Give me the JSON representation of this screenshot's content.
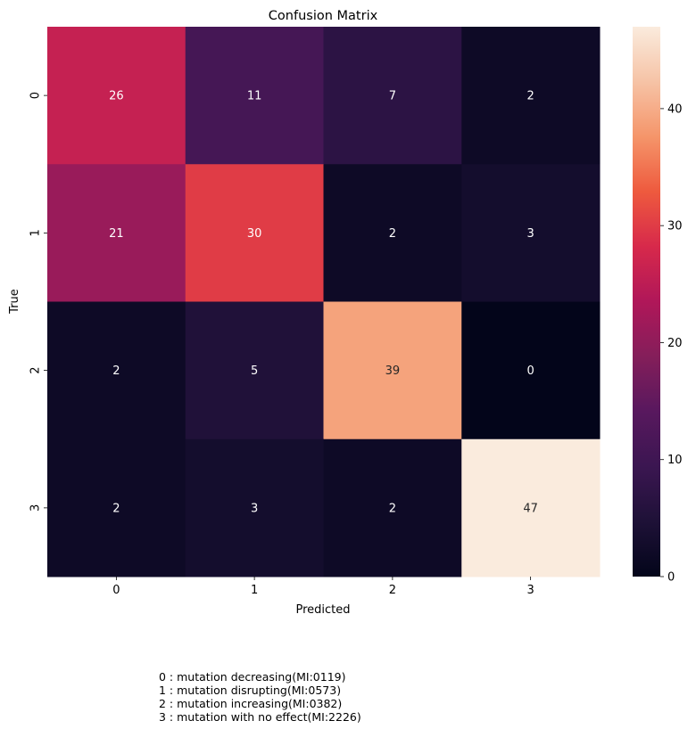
{
  "chart_data": {
    "type": "heatmap",
    "title": "Confusion Matrix",
    "xlabel": "Predicted",
    "ylabel": "True",
    "x_categories": [
      "0",
      "1",
      "2",
      "3"
    ],
    "y_categories": [
      "0",
      "1",
      "2",
      "3"
    ],
    "matrix": [
      [
        26,
        11,
        7,
        2
      ],
      [
        21,
        30,
        2,
        3
      ],
      [
        2,
        5,
        39,
        0
      ],
      [
        2,
        3,
        2,
        47
      ]
    ],
    "colormap": "rocket",
    "colorbar": {
      "range": [
        0,
        47
      ],
      "ticks": [
        "0",
        "10",
        "20",
        "30",
        "40"
      ]
    },
    "annotations_shown": true
  },
  "notes": [
    "0 : mutation decreasing(MI:0119)",
    "1 : mutation disrupting(MI:0573)",
    "2 : mutation increasing(MI:0382)",
    "3 : mutation with no effect(MI:2226)"
  ]
}
